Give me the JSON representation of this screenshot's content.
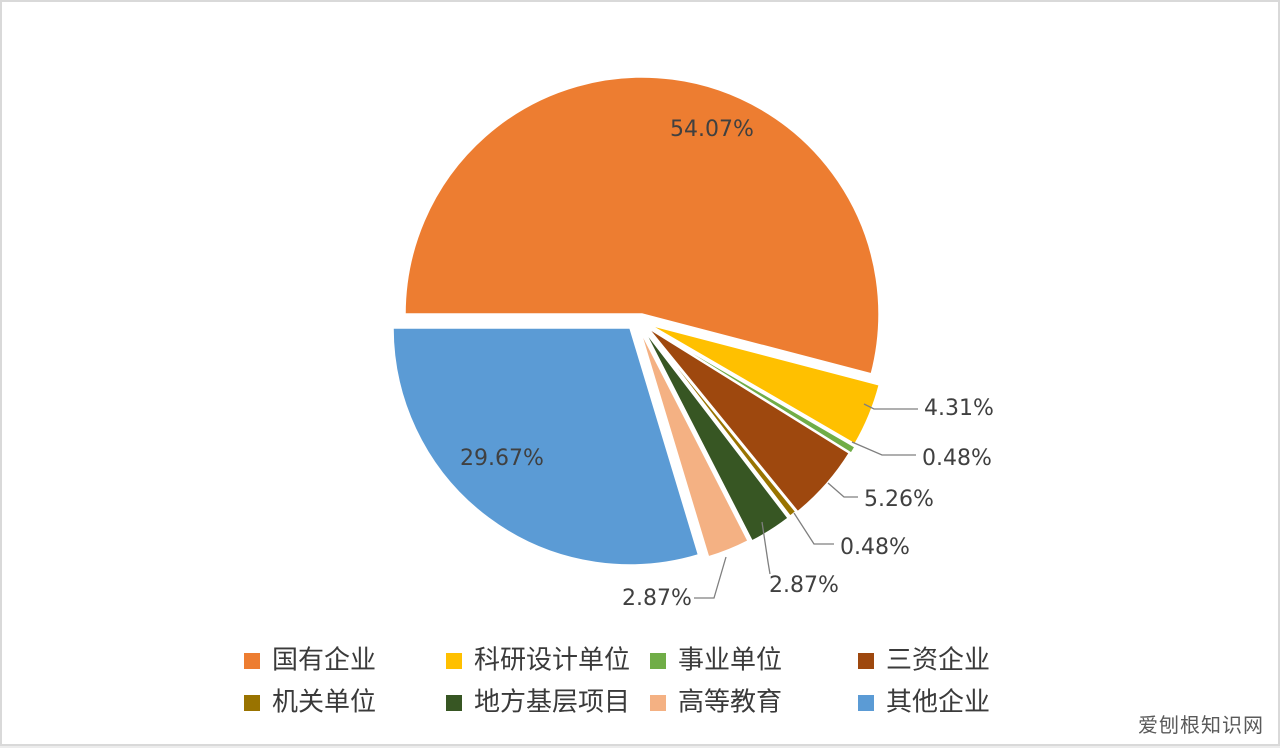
{
  "chart_data": {
    "type": "pie",
    "title": "",
    "slices": [
      {
        "label": "国有企业",
        "value": 54.07,
        "display": "54.07%",
        "color": "#ED7D31"
      },
      {
        "label": "科研设计单位",
        "value": 4.31,
        "display": "4.31%",
        "color": "#FFC000"
      },
      {
        "label": "事业单位",
        "value": 0.48,
        "display": "0.48%",
        "color": "#70AD47"
      },
      {
        "label": "三资企业",
        "value": 5.26,
        "display": "5.26%",
        "color": "#9E480E"
      },
      {
        "label": "机关单位",
        "value": 0.48,
        "display": "0.48%",
        "color": "#997300"
      },
      {
        "label": "地方基层项目",
        "value": 2.87,
        "display": "2.87%",
        "color": "#375623"
      },
      {
        "label": "高等教育",
        "value": 2.87,
        "display": "2.87%",
        "color": "#F4B183"
      },
      {
        "label": "其他企业",
        "value": 29.67,
        "display": "29.67%",
        "color": "#5B9BD5"
      }
    ],
    "legend_position": "bottom"
  },
  "watermark": "爱刨根知识网"
}
